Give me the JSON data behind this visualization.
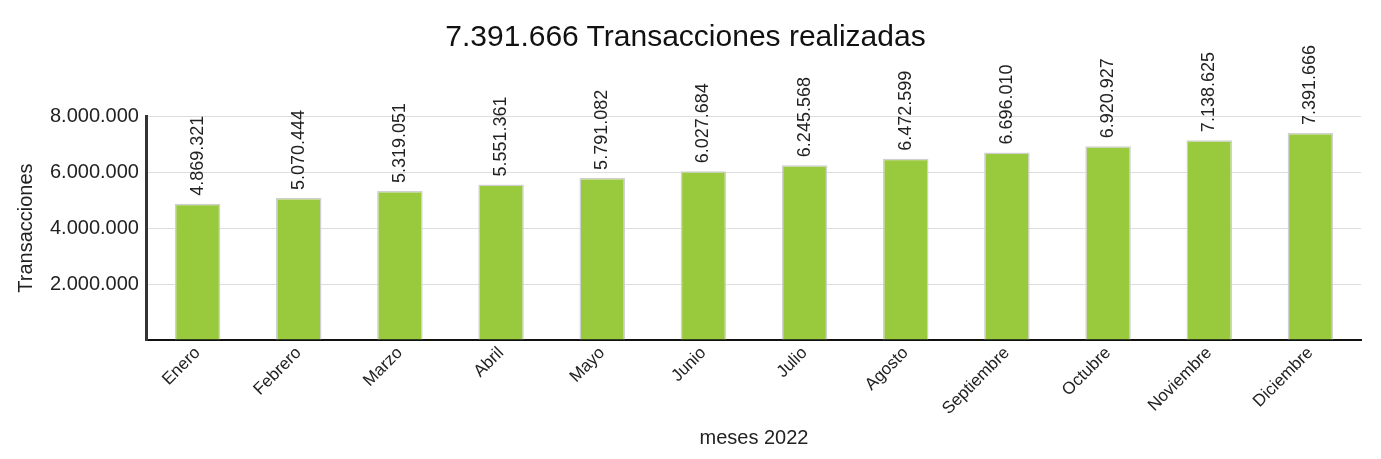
{
  "chart_data": {
    "type": "bar",
    "title": "7.391.666 Transacciones realizadas",
    "xlabel": "meses 2022",
    "ylabel": "Transacciones",
    "categories": [
      "Enero",
      "Febrero",
      "Marzo",
      "Abril",
      "Mayo",
      "Junio",
      "Julio",
      "Agosto",
      "Septiembre",
      "Octubre",
      "Noviembre",
      "Diciembre"
    ],
    "values": [
      4869321,
      5070444,
      5319051,
      5551361,
      5791082,
      6027684,
      6245568,
      6472599,
      6696010,
      6920927,
      7138625,
      7391666
    ],
    "value_labels": [
      "4.869.321",
      "5.070.444",
      "5.319.051",
      "5.551.361",
      "5.791.082",
      "6.027.684",
      "6.245.568",
      "6.472.599",
      "6.696.010",
      "6.920.927",
      "7.138.625",
      "7.391.666"
    ],
    "color": "#99c93c",
    "ylim": [
      0,
      8000000
    ],
    "yticks": [
      {
        "value": 0,
        "label": null
      },
      {
        "value": 2000000,
        "label": "2.000.000"
      },
      {
        "value": 4000000,
        "label": "4.000.000"
      },
      {
        "value": 6000000,
        "label": "6.000.000"
      },
      {
        "value": 8000000,
        "label": "8.000.000"
      }
    ],
    "grid": "y"
  }
}
